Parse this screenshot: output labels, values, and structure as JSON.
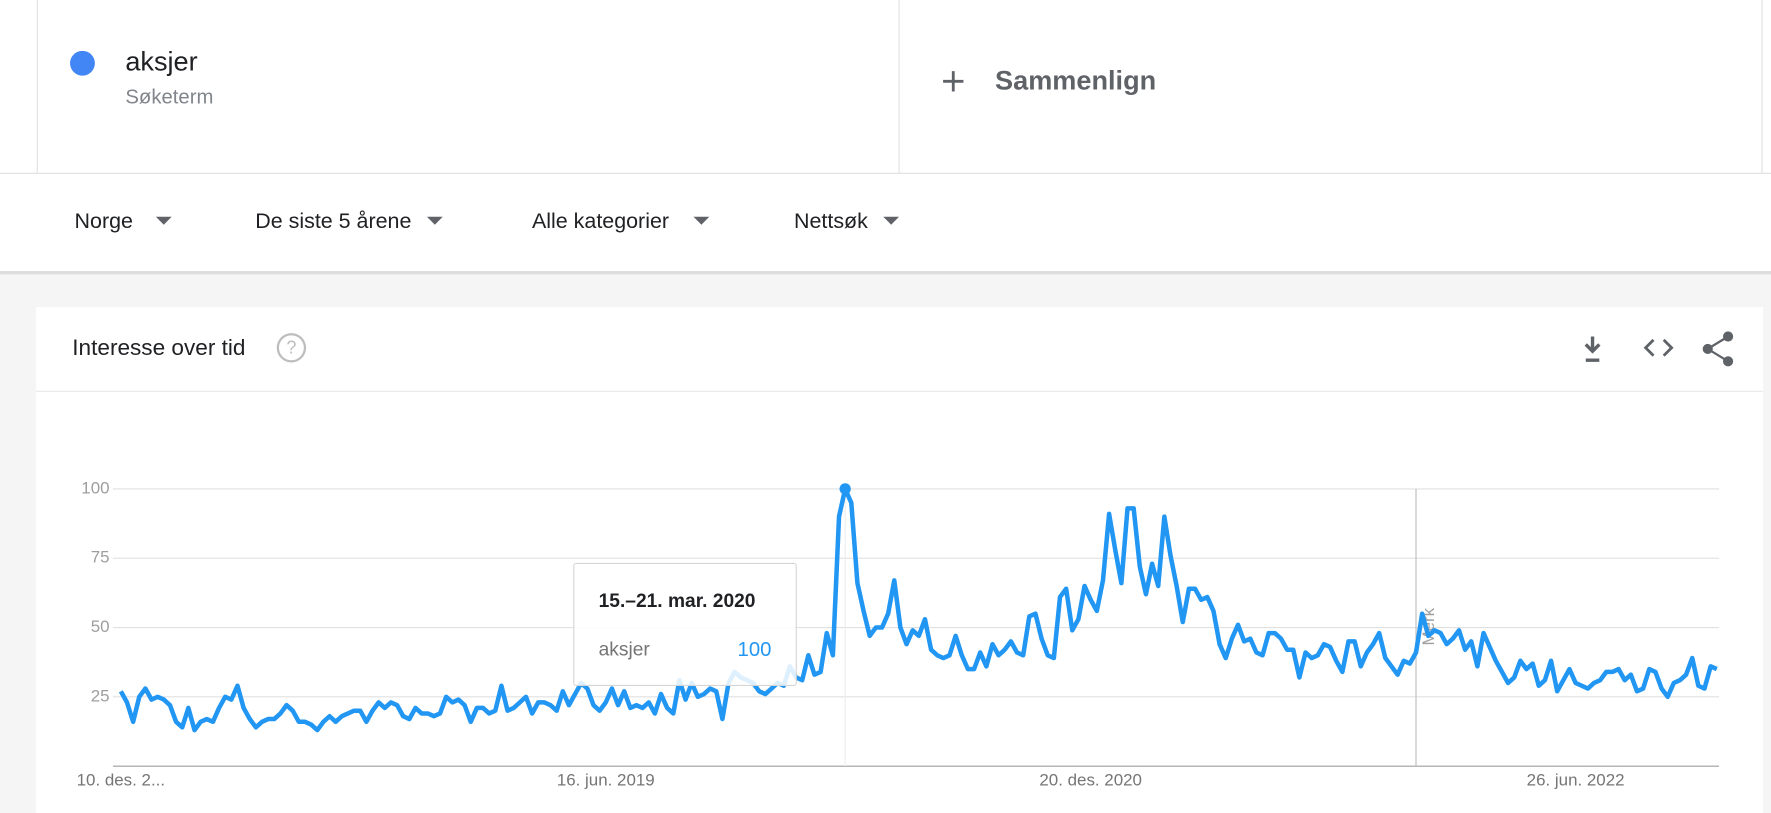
{
  "header": {
    "term": "aksjer",
    "term_sub": "Søketerm",
    "term_color": "#4285f4",
    "compare": "Sammenlign"
  },
  "filters": [
    "Norge",
    "De siste 5 årene",
    "Alle kategorier",
    "Nettsøk"
  ],
  "panel": {
    "title": "Interesse over tid"
  },
  "chart_data": {
    "type": "line",
    "series": [
      {
        "name": "aksjer",
        "color": "#2196f3",
        "values": [
          27,
          23,
          16,
          25,
          28,
          24,
          25,
          24,
          22,
          16,
          14,
          21,
          13,
          16,
          17,
          16,
          21,
          25,
          24,
          29,
          21,
          17,
          14,
          16,
          17,
          17,
          19,
          22,
          20,
          16,
          16,
          15,
          13,
          16,
          18,
          16,
          18,
          19,
          20,
          20,
          16,
          20,
          23,
          21,
          23,
          22,
          18,
          17,
          21,
          19,
          19,
          18,
          19,
          25,
          23,
          24,
          22,
          16,
          21,
          21,
          19,
          20,
          29,
          20,
          21,
          23,
          25,
          19,
          23,
          23,
          22,
          20,
          27,
          22,
          26,
          30,
          28,
          22,
          20,
          23,
          28,
          22,
          27,
          21,
          22,
          21,
          23,
          19,
          26,
          21,
          19,
          31,
          24,
          30,
          25,
          26,
          28,
          27,
          17,
          30,
          34,
          32,
          31,
          30,
          27,
          26,
          28,
          30,
          29,
          36,
          32,
          31,
          40,
          33,
          34,
          48,
          40,
          90,
          100,
          95,
          66,
          56,
          47,
          50,
          50,
          55,
          67,
          50,
          44,
          49,
          47,
          53,
          42,
          40,
          39,
          40,
          47,
          40,
          35,
          35,
          41,
          36,
          44,
          40,
          42,
          45,
          41,
          40,
          54,
          55,
          46,
          40,
          39,
          61,
          64,
          49,
          53,
          65,
          60,
          56,
          67,
          91,
          78,
          66,
          93,
          93,
          72,
          62,
          73,
          65,
          90,
          76,
          65,
          52,
          64,
          64,
          60,
          61,
          56,
          44,
          39,
          46,
          51,
          45,
          46,
          41,
          40,
          48,
          48,
          46,
          42,
          42,
          32,
          41,
          39,
          40,
          44,
          43,
          38,
          34,
          45,
          45,
          36,
          41,
          44,
          48,
          39,
          36,
          33,
          38,
          37,
          41,
          55,
          47,
          49,
          48,
          44,
          46,
          49,
          42,
          45,
          36,
          48,
          43,
          38,
          34,
          30,
          32,
          38,
          35,
          37,
          29,
          31,
          38,
          27,
          31,
          35,
          30,
          29,
          28,
          30,
          31,
          34,
          34,
          35,
          31,
          33,
          27,
          28,
          35,
          34,
          28,
          25,
          30,
          31,
          33,
          39,
          29,
          28,
          36,
          35
        ]
      }
    ],
    "xlim": [
      0,
      260
    ],
    "xticks": [
      {
        "value": 0,
        "label": "10. des. 2..."
      },
      {
        "value": 79,
        "label": "16. jun. 2019"
      },
      {
        "value": 158,
        "label": "20. des. 2020"
      },
      {
        "value": 237,
        "label": "26. jun. 2022"
      }
    ],
    "ylim": [
      0,
      100
    ],
    "yticks": [
      25,
      50,
      75,
      100
    ],
    "grid": true,
    "annotations": [
      {
        "x": 211,
        "label": "Merk"
      }
    ],
    "tooltip": {
      "x": 118,
      "title": "15.–21. mar. 2020",
      "value": 100
    }
  }
}
